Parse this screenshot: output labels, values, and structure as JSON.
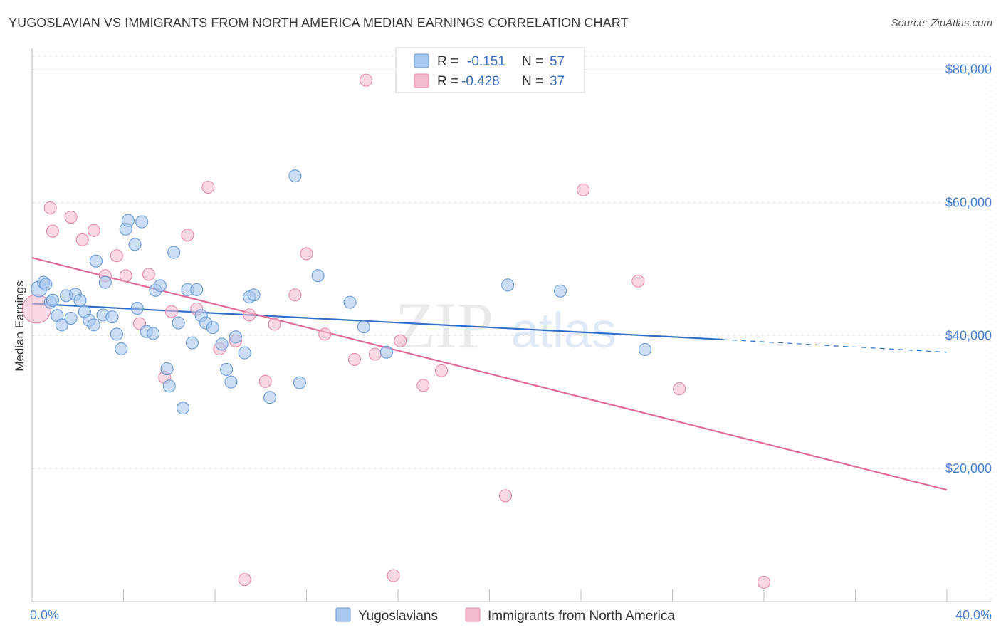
{
  "title": "YUGOSLAVIAN VS IMMIGRANTS FROM NORTH AMERICA MEDIAN EARNINGS CORRELATION CHART",
  "source": "Source: ZipAtlas.com",
  "watermark": {
    "zip": "ZIP",
    "atlas": "atlas"
  },
  "colors": {
    "blue_fill": "#a9c8f0",
    "blue_stroke": "#6a9ad8",
    "blue_line": "#2f6fc9",
    "pink_fill": "#f5bcd0",
    "pink_stroke": "#e58aa9",
    "pink_line": "#e06a98",
    "tick_text": "#4a7fd0",
    "grid": "#e2e2e2"
  },
  "legend": {
    "rows": [
      {
        "r_label": "R =",
        "r_value": "-0.151",
        "n_label": "N =",
        "n_value": "57"
      },
      {
        "r_label": "R =",
        "r_value": "-0.428",
        "n_label": "N =",
        "n_value": "37"
      }
    ]
  },
  "chart_data": {
    "type": "scatter",
    "title": "YUGOSLAVIAN VS IMMIGRANTS FROM NORTH AMERICA MEDIAN EARNINGS CORRELATION CHART",
    "xlabel": "",
    "ylabel": "Median Earnings",
    "xlim": [
      0,
      40
    ],
    "ylim": [
      0,
      82000
    ],
    "x_tick_labels": [
      "0.0%",
      "40.0%"
    ],
    "y_ticks": [
      20000,
      40000,
      60000,
      80000
    ],
    "y_tick_labels": [
      "$20,000",
      "$40,000",
      "$60,000",
      "$80,000"
    ],
    "grid": true,
    "legend_position": "top-center",
    "series": [
      {
        "name": "Yugoslavians",
        "r": -0.151,
        "n": 57,
        "trend": {
          "x": [
            0,
            30.2
          ],
          "y": [
            44800,
            39400
          ],
          "dashed_extension": {
            "x": [
              30.2,
              40
            ],
            "y": [
              39400,
              37500
            ]
          }
        },
        "points": [
          [
            0.3,
            47000
          ],
          [
            0.5,
            48000
          ],
          [
            0.6,
            47700
          ],
          [
            0.8,
            45000
          ],
          [
            0.9,
            45300
          ],
          [
            1.1,
            43000
          ],
          [
            1.3,
            41600
          ],
          [
            1.5,
            46000
          ],
          [
            1.7,
            42600
          ],
          [
            1.9,
            46200
          ],
          [
            2.1,
            45300
          ],
          [
            2.3,
            43600
          ],
          [
            2.5,
            42300
          ],
          [
            2.7,
            41600
          ],
          [
            2.8,
            51200
          ],
          [
            3.1,
            43100
          ],
          [
            3.2,
            48000
          ],
          [
            3.5,
            42800
          ],
          [
            3.7,
            40200
          ],
          [
            3.9,
            38000
          ],
          [
            4.1,
            56000
          ],
          [
            4.2,
            57300
          ],
          [
            4.5,
            53700
          ],
          [
            4.6,
            44100
          ],
          [
            4.8,
            57100
          ],
          [
            5.0,
            40600
          ],
          [
            5.3,
            40300
          ],
          [
            5.4,
            46800
          ],
          [
            5.6,
            47500
          ],
          [
            5.9,
            35000
          ],
          [
            6.0,
            32400
          ],
          [
            6.2,
            52500
          ],
          [
            6.4,
            41900
          ],
          [
            6.6,
            29100
          ],
          [
            6.8,
            46900
          ],
          [
            7.0,
            38900
          ],
          [
            7.2,
            46900
          ],
          [
            7.4,
            43000
          ],
          [
            7.6,
            41900
          ],
          [
            7.9,
            41200
          ],
          [
            8.3,
            38700
          ],
          [
            8.5,
            34900
          ],
          [
            8.7,
            33000
          ],
          [
            8.9,
            39800
          ],
          [
            9.3,
            37400
          ],
          [
            9.5,
            45800
          ],
          [
            9.7,
            46100
          ],
          [
            10.4,
            30700
          ],
          [
            11.5,
            64000
          ],
          [
            11.7,
            32900
          ],
          [
            12.5,
            49000
          ],
          [
            13.9,
            45000
          ],
          [
            14.5,
            41300
          ],
          [
            15.5,
            37500
          ],
          [
            20.8,
            47600
          ],
          [
            23.1,
            46700
          ],
          [
            26.8,
            37900
          ]
        ]
      },
      {
        "name": "Immigrants from North America",
        "r": -0.428,
        "n": 37,
        "trend": {
          "x": [
            0,
            40
          ],
          "y": [
            51700,
            16800
          ]
        },
        "points": [
          [
            0.2,
            44000
          ],
          [
            0.8,
            59200
          ],
          [
            0.9,
            55700
          ],
          [
            1.7,
            57800
          ],
          [
            2.2,
            54400
          ],
          [
            2.7,
            55800
          ],
          [
            3.2,
            49000
          ],
          [
            3.7,
            52000
          ],
          [
            4.1,
            49000
          ],
          [
            4.7,
            41800
          ],
          [
            5.1,
            49200
          ],
          [
            5.8,
            33700
          ],
          [
            6.1,
            43600
          ],
          [
            6.8,
            55100
          ],
          [
            7.7,
            62300
          ],
          [
            7.2,
            44000
          ],
          [
            8.2,
            38000
          ],
          [
            8.9,
            39200
          ],
          [
            9.3,
            3300
          ],
          [
            9.5,
            43100
          ],
          [
            10.2,
            33100
          ],
          [
            10.6,
            41700
          ],
          [
            11.5,
            46100
          ],
          [
            12.0,
            52300
          ],
          [
            12.8,
            40200
          ],
          [
            14.1,
            36400
          ],
          [
            14.6,
            78400
          ],
          [
            15.0,
            37200
          ],
          [
            15.8,
            3900
          ],
          [
            16.1,
            39200
          ],
          [
            17.1,
            32500
          ],
          [
            17.9,
            34700
          ],
          [
            20.7,
            15900
          ],
          [
            24.1,
            61900
          ],
          [
            26.5,
            48200
          ],
          [
            28.3,
            32000
          ],
          [
            32.0,
            2900
          ]
        ]
      }
    ]
  },
  "bottom_legend": [
    {
      "label": "Yugoslavians"
    },
    {
      "label": "Immigrants from North America"
    }
  ]
}
